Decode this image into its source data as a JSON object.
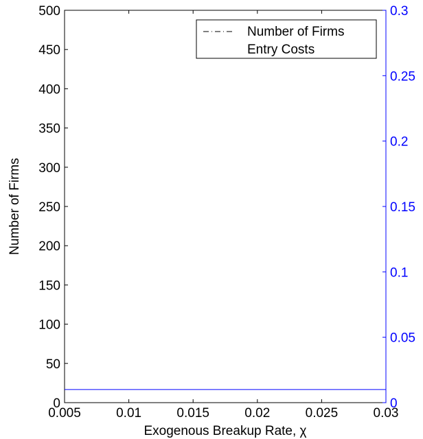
{
  "chart_data": {
    "type": "line",
    "xlabel": "Exogenous Breakup Rate, χ",
    "ylabel_left": "Number of Firms",
    "ylabel_right": "",
    "xlim": [
      0.005,
      0.03
    ],
    "ylim_left": [
      0,
      500
    ],
    "ylim_right": [
      0,
      0.3
    ],
    "x_ticks": [
      {
        "value": 0.005,
        "label": "0.005"
      },
      {
        "value": 0.01,
        "label": "0.01"
      },
      {
        "value": 0.015,
        "label": "0.015"
      },
      {
        "value": 0.02,
        "label": "0.02"
      },
      {
        "value": 0.025,
        "label": "0.025"
      },
      {
        "value": 0.03,
        "label": "0.03"
      }
    ],
    "y_left_ticks": [
      {
        "value": 0,
        "label": "0"
      },
      {
        "value": 50,
        "label": "50"
      },
      {
        "value": 100,
        "label": "100"
      },
      {
        "value": 150,
        "label": "150"
      },
      {
        "value": 200,
        "label": "200"
      },
      {
        "value": 250,
        "label": "250"
      },
      {
        "value": 300,
        "label": "300"
      },
      {
        "value": 350,
        "label": "350"
      },
      {
        "value": 400,
        "label": "400"
      },
      {
        "value": 450,
        "label": "450"
      },
      {
        "value": 500,
        "label": "500"
      }
    ],
    "y_right_ticks": [
      {
        "value": 0,
        "label": "0"
      },
      {
        "value": 0.05,
        "label": "0.05"
      },
      {
        "value": 0.1,
        "label": "0.1"
      },
      {
        "value": 0.15,
        "label": "0.15"
      },
      {
        "value": 0.2,
        "label": "0.2"
      },
      {
        "value": 0.25,
        "label": "0.25"
      },
      {
        "value": 0.3,
        "label": "0.3"
      }
    ],
    "series": [
      {
        "name": "Number of Firms",
        "axis": "left",
        "color": "#000000",
        "style": "dash-dot",
        "x": [],
        "y": []
      },
      {
        "name": "Entry Costs",
        "axis": "right",
        "color": "#0000ff",
        "style": "solid",
        "x": [
          0.005,
          0.03
        ],
        "y": [
          0.01,
          0.01
        ]
      }
    ],
    "legend": {
      "placement": "top-right"
    },
    "grid": false,
    "colors": {
      "left_axis": "#000000",
      "right_axis": "#0000ff"
    }
  }
}
